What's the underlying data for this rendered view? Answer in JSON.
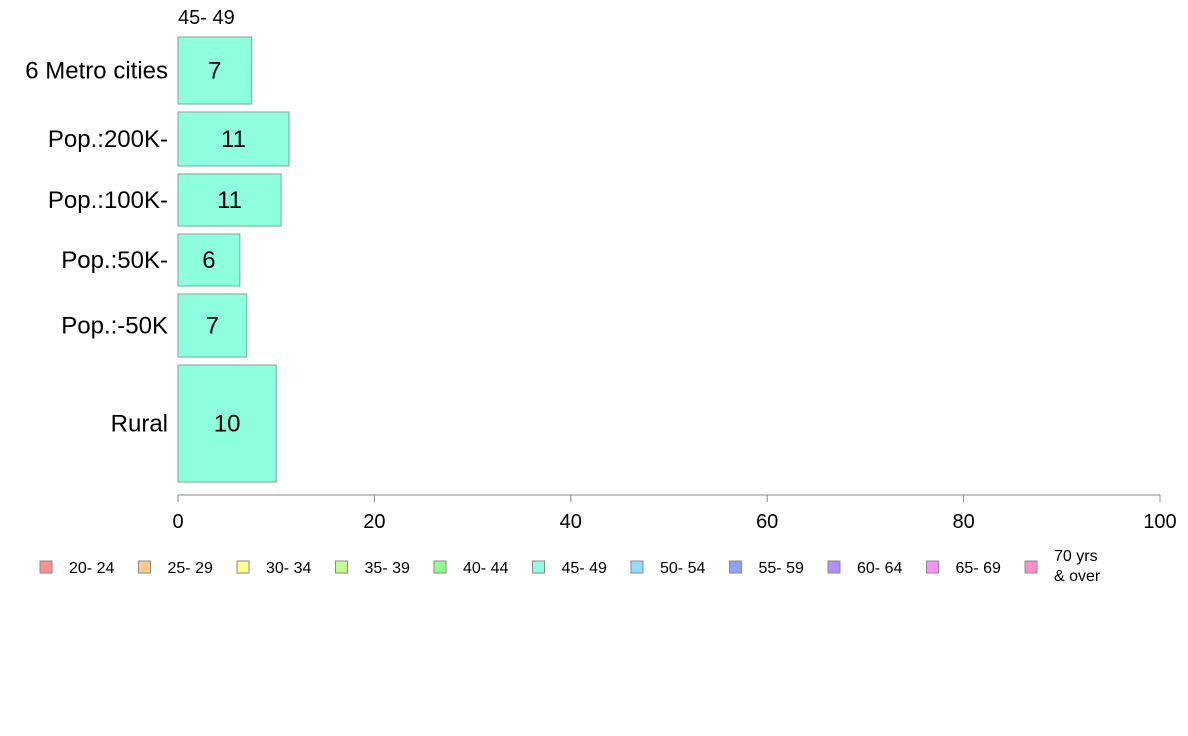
{
  "chart_data": {
    "type": "bar",
    "orientation": "horizontal",
    "column_header": "45- 49",
    "categories": [
      "6 Metro cities",
      "Pop.:200K-",
      "Pop.:100K-",
      "Pop.:50K-",
      "Pop.:-50K",
      "Rural"
    ],
    "series": [
      {
        "name": "45- 49",
        "color": "#8effde",
        "values": [
          7.5,
          11.3,
          10.5,
          6.3,
          7.0,
          10.0
        ],
        "labels": [
          "7",
          "11",
          "11",
          "6",
          "7",
          "10"
        ]
      }
    ],
    "xlim": [
      0,
      100
    ],
    "xticks": [
      0,
      20,
      40,
      60,
      80,
      100
    ],
    "grid": false,
    "legend_position": "bottom",
    "legend": [
      {
        "label": "20- 24",
        "color": "#ff8e8e"
      },
      {
        "label": "25- 29",
        "color": "#ffc98e"
      },
      {
        "label": "30- 34",
        "color": "#ffff8e"
      },
      {
        "label": "35- 39",
        "color": "#c3ff8e"
      },
      {
        "label": "40- 44",
        "color": "#8eff8e"
      },
      {
        "label": "45- 49",
        "color": "#8effde"
      },
      {
        "label": "50- 54",
        "color": "#8edfff"
      },
      {
        "label": "55- 59",
        "color": "#8e9fff"
      },
      {
        "label": "60- 64",
        "color": "#b08eff"
      },
      {
        "label": "65- 69",
        "color": "#ff8eff"
      },
      {
        "label": "70 yrs\n& over",
        "color": "#ff8ec8"
      }
    ]
  }
}
